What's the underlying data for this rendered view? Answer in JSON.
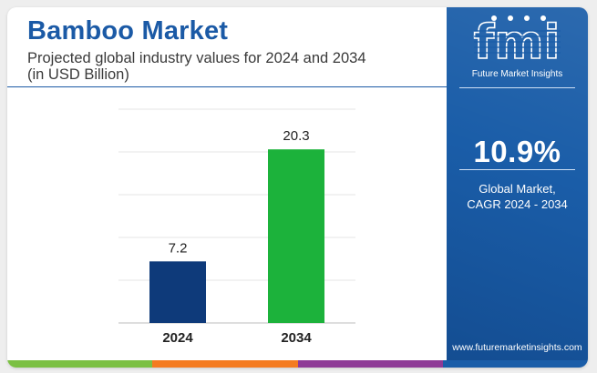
{
  "header": {
    "title": "Bamboo Market",
    "subtitle_line1": "Projected global industry values for 2024 and 2034",
    "subtitle_line2": "(in USD Billion)"
  },
  "chart_data": {
    "type": "bar",
    "categories": [
      "2024",
      "2034"
    ],
    "values": [
      7.2,
      20.3
    ],
    "colors": [
      "#0e3a7a",
      "#1cb23b"
    ],
    "title": "Bamboo Market",
    "subtitle": "Projected global industry values for 2024 and 2034 (in USD Billion)",
    "xlabel": "",
    "ylabel": "",
    "ylim": [
      0,
      25
    ],
    "grid": true,
    "legend": "none"
  },
  "side_panel": {
    "logo_letters": "fmi",
    "logo_name": "Future Market Insights",
    "cagr_value": "10.9%",
    "cagr_label_line1": "Global Market,",
    "cagr_label_line2": "CAGR 2024 - 2034",
    "website": "www.futuremarketinsights.com",
    "background_color": "#1a5da8"
  },
  "bottom_bar_colors": [
    "#7bc043",
    "#f47b20",
    "#8e3a96",
    "#1a5da8"
  ]
}
